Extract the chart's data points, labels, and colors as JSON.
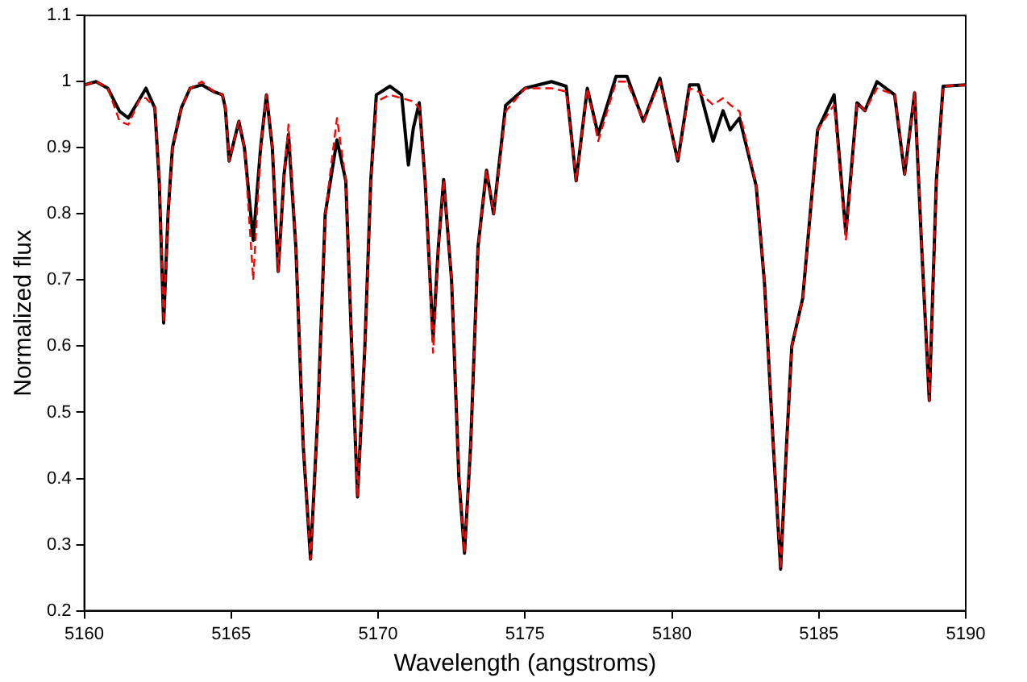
{
  "chart_data": {
    "type": "line",
    "xlabel": "Wavelength (angstroms)",
    "ylabel": "Normalized flux",
    "x": [
      5160.0,
      5160.4,
      5160.8,
      5161.2,
      5161.5,
      5161.9,
      5162.1,
      5162.4,
      5162.55,
      5162.7,
      5162.85,
      5163.0,
      5163.3,
      5163.6,
      5164.0,
      5164.4,
      5164.7,
      5164.8,
      5164.93,
      5165.26,
      5165.45,
      5165.75,
      5166.0,
      5166.2,
      5166.4,
      5166.6,
      5166.8,
      5166.95,
      5167.2,
      5167.45,
      5167.7,
      5167.95,
      5168.2,
      5168.6,
      5168.9,
      5169.1,
      5169.3,
      5169.55,
      5169.75,
      5169.94,
      5170.4,
      5170.8,
      5171.03,
      5171.2,
      5171.4,
      5171.6,
      5171.87,
      5172.05,
      5172.23,
      5172.5,
      5172.75,
      5172.94,
      5173.15,
      5173.4,
      5173.69,
      5173.93,
      5174.34,
      5175.0,
      5175.9,
      5176.4,
      5176.74,
      5177.12,
      5177.49,
      5178.1,
      5178.47,
      5179.03,
      5179.59,
      5180.2,
      5180.6,
      5180.9,
      5181.4,
      5181.74,
      5181.98,
      5182.3,
      5182.87,
      5183.15,
      5183.45,
      5183.7,
      5183.9,
      5184.08,
      5184.45,
      5184.96,
      5185.52,
      5185.92,
      5186.3,
      5186.57,
      5186.98,
      5187.58,
      5187.92,
      5188.26,
      5188.5,
      5188.76,
      5189.0,
      5189.23,
      5190.0
    ],
    "series": [
      {
        "color": "#000000",
        "line_style": "solid",
        "values": [
          0.995,
          1.0,
          0.99,
          0.955,
          0.945,
          0.975,
          0.99,
          0.96,
          0.85,
          0.635,
          0.8,
          0.9,
          0.96,
          0.99,
          0.995,
          0.985,
          0.98,
          0.96,
          0.88,
          0.94,
          0.9,
          0.76,
          0.9,
          0.98,
          0.9,
          0.713,
          0.86,
          0.92,
          0.75,
          0.45,
          0.278,
          0.5,
          0.8,
          0.912,
          0.85,
          0.6,
          0.372,
          0.6,
          0.85,
          0.98,
          0.993,
          0.98,
          0.874,
          0.93,
          0.968,
          0.85,
          0.61,
          0.75,
          0.852,
          0.7,
          0.4,
          0.287,
          0.45,
          0.75,
          0.866,
          0.8,
          0.964,
          0.99,
          1.0,
          0.993,
          0.85,
          0.99,
          0.92,
          1.008,
          1.008,
          0.94,
          1.005,
          0.88,
          0.995,
          0.995,
          0.91,
          0.956,
          0.927,
          0.945,
          0.842,
          0.696,
          0.45,
          0.263,
          0.45,
          0.6,
          0.672,
          0.927,
          0.98,
          0.77,
          0.968,
          0.956,
          1.0,
          0.98,
          0.86,
          0.983,
          0.75,
          0.518,
          0.85,
          0.993,
          0.995
        ]
      },
      {
        "color": "#ff0000",
        "line_style": "dashed",
        "values": [
          0.995,
          1.0,
          0.99,
          0.94,
          0.935,
          0.975,
          0.975,
          0.96,
          0.85,
          0.635,
          0.8,
          0.9,
          0.96,
          0.99,
          1.0,
          0.985,
          0.98,
          0.96,
          0.88,
          0.94,
          0.9,
          0.7,
          0.9,
          0.98,
          0.9,
          0.713,
          0.86,
          0.935,
          0.75,
          0.45,
          0.278,
          0.5,
          0.8,
          0.945,
          0.85,
          0.6,
          0.372,
          0.6,
          0.85,
          0.97,
          0.98,
          0.975,
          0.972,
          0.97,
          0.96,
          0.85,
          0.59,
          0.75,
          0.852,
          0.7,
          0.4,
          0.287,
          0.45,
          0.75,
          0.866,
          0.8,
          0.955,
          0.99,
          0.99,
          0.985,
          0.85,
          0.99,
          0.91,
          1.0,
          1.0,
          0.94,
          1.0,
          0.88,
          0.99,
          0.985,
          0.965,
          0.975,
          0.965,
          0.955,
          0.842,
          0.696,
          0.45,
          0.263,
          0.45,
          0.6,
          0.672,
          0.927,
          0.965,
          0.76,
          0.968,
          0.956,
          0.99,
          0.98,
          0.86,
          0.983,
          0.75,
          0.518,
          0.85,
          0.993,
          0.995
        ]
      }
    ],
    "xlim": [
      5160,
      5190
    ],
    "xticks": [
      5160,
      5165,
      5170,
      5175,
      5180,
      5185,
      5190
    ],
    "ylim": [
      0.2,
      1.1
    ],
    "yticks": [
      0.2,
      0.3,
      0.4,
      0.5,
      0.6,
      0.7,
      0.8,
      0.9,
      1,
      1.1
    ],
    "grid": false,
    "legend": false,
    "marker": "none"
  }
}
